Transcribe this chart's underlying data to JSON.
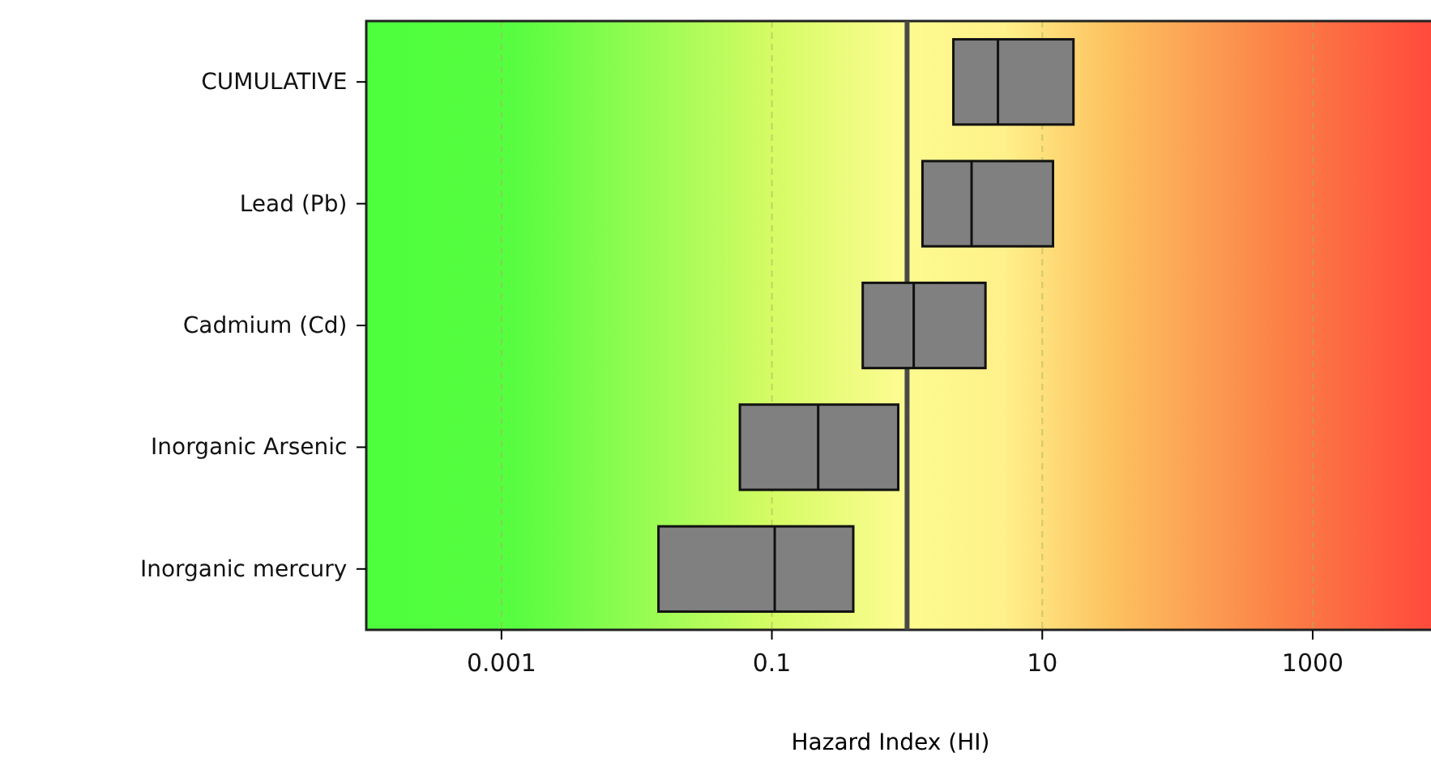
{
  "chart_data": {
    "type": "box",
    "orientation": "horizontal",
    "log": "x",
    "xlabel": "Hazard Index (HI)",
    "categories": [
      "CUMULATIVE",
      "Lead (Pb)",
      "Cadmium (Cd)",
      "Inorganic Arsenic",
      "Inorganic mercury"
    ],
    "boxes": [
      {
        "low": 2.2,
        "q1": 2.2,
        "median": 4.7,
        "q3": 17,
        "high": 17
      },
      {
        "low": 1.3,
        "q1": 1.3,
        "median": 3.0,
        "q3": 12,
        "high": 12
      },
      {
        "low": 0.47,
        "q1": 0.47,
        "median": 1.12,
        "q3": 3.8,
        "high": 3.8
      },
      {
        "low": 0.058,
        "q1": 0.058,
        "median": 0.22,
        "q3": 0.86,
        "high": 0.86
      },
      {
        "low": 0.0145,
        "q1": 0.0145,
        "median": 0.105,
        "q3": 0.4,
        "high": 0.4
      }
    ],
    "color": "#808080",
    "xlim": [
      0.0001,
      7500
    ],
    "xticks": [
      0.001,
      0.1,
      10,
      1000
    ],
    "grid": "x",
    "ref_lines": [
      {
        "axis": "x",
        "value": 1,
        "color": "#4a4a4a"
      }
    ]
  }
}
